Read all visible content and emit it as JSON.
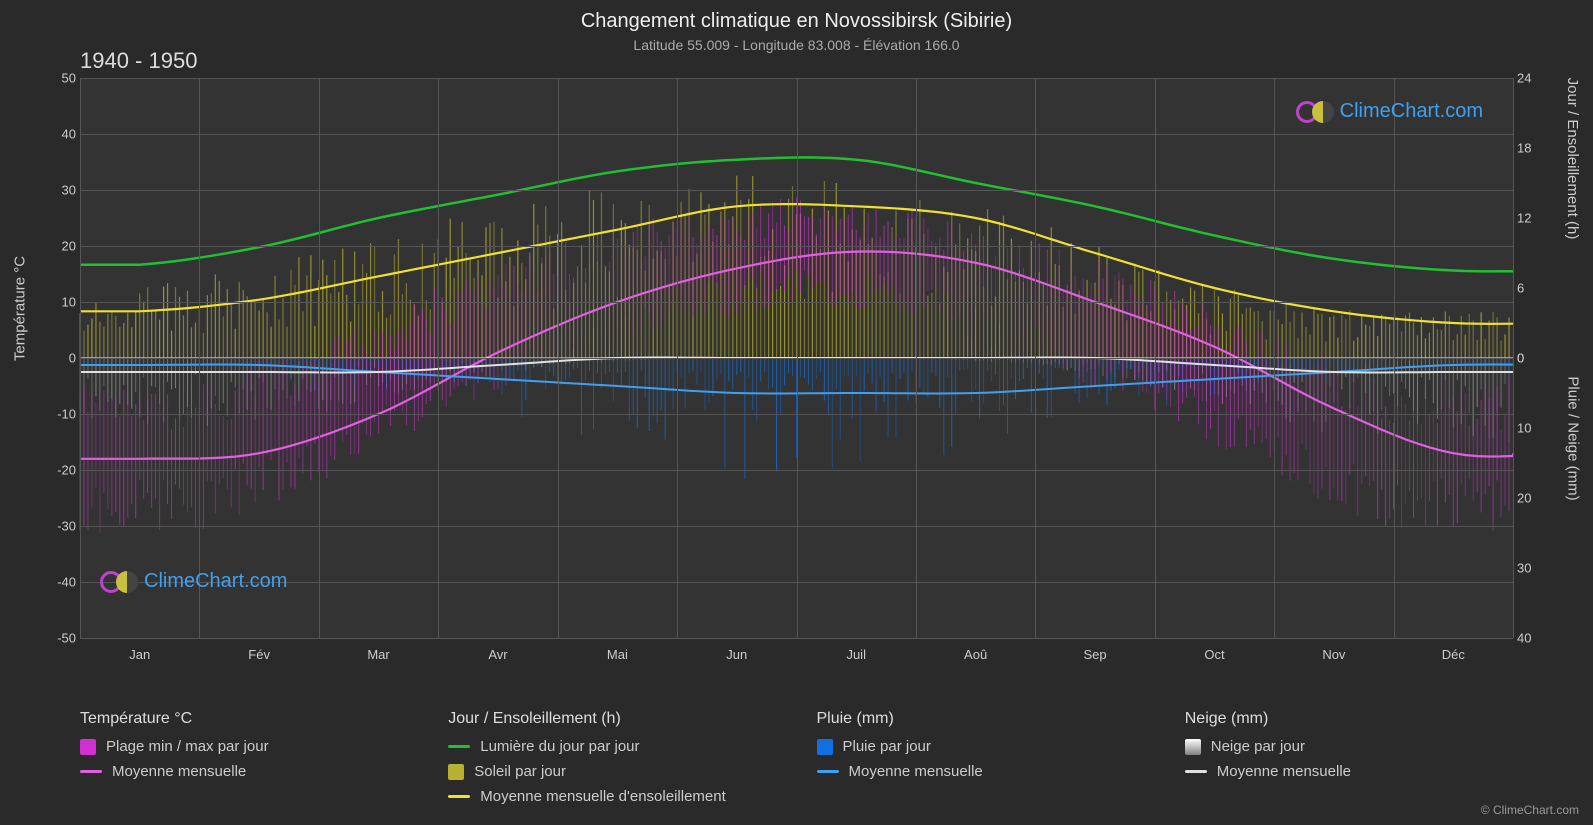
{
  "title": "Changement climatique en Novossibirsk (Sibirie)",
  "subtitle": "Latitude 55.009 - Longitude 83.008 - Élévation 166.0",
  "period": "1940 - 1950",
  "brand": "ClimeChart.com",
  "copyright": "© ClimeChart.com",
  "left_axis": {
    "label": "Température °C",
    "min": -50,
    "max": 50,
    "step": 10,
    "ticks": [
      50,
      40,
      30,
      20,
      10,
      0,
      -10,
      -20,
      -30,
      -40,
      -50
    ]
  },
  "right_axis_top": {
    "label": "Jour / Ensoleillement (h)",
    "ticks": [
      24,
      18,
      12,
      6,
      0
    ],
    "min": 0,
    "max": 24
  },
  "right_axis_bot": {
    "label": "Pluie / Neige (mm)",
    "ticks": [
      0,
      10,
      20,
      30,
      40
    ],
    "min": 0,
    "max": 40
  },
  "months": [
    "Jan",
    "Fév",
    "Mar",
    "Avr",
    "Mai",
    "Jun",
    "Juil",
    "Aoû",
    "Sep",
    "Oct",
    "Nov",
    "Déc"
  ],
  "colors": {
    "background": "#2a2a2a",
    "plot_bg": "#333333",
    "grid": "#555555",
    "text": "#cccccc",
    "temp_range": "#d030d0",
    "temp_mean": "#e060e0",
    "daylight": "#20c030",
    "sunshine_bar": "#b8b030",
    "sunshine_mean": "#f0e030",
    "rain_bar": "#1070e0",
    "rain_mean": "#40a0f0",
    "snow_bar": "#b0b0b0",
    "snow_mean": "#e0e0e0",
    "brand": "#40a0f0"
  },
  "series": {
    "temp_mean": [
      -18,
      -17,
      -10,
      1,
      10,
      16,
      19,
      17,
      10,
      2,
      -9,
      -17
    ],
    "daylight_h": [
      8,
      9.5,
      12,
      14,
      16,
      17,
      17,
      15,
      13,
      10.5,
      8.5,
      7.5
    ],
    "sunshine_mean_h": [
      4,
      5,
      7,
      9,
      11,
      13,
      13,
      12,
      9,
      6,
      4,
      3
    ],
    "rain_mean_mm": [
      1,
      1,
      2,
      3,
      4,
      5,
      5,
      5,
      4,
      3,
      2,
      1
    ],
    "snow_mean_mm": [
      2,
      2,
      2,
      1,
      0,
      0,
      0,
      0,
      0,
      1,
      2,
      2
    ],
    "temp_minmax_amp": [
      14,
      14,
      13,
      12,
      11,
      10,
      10,
      10,
      11,
      12,
      13,
      14
    ],
    "sunshine_daily_max_h": [
      5,
      7,
      9,
      12,
      14,
      16,
      16,
      15,
      12,
      8,
      5,
      4
    ],
    "rain_daily_max_mm": [
      3,
      3,
      5,
      8,
      12,
      18,
      20,
      18,
      12,
      8,
      5,
      3
    ],
    "snow_daily_max_mm": [
      10,
      10,
      8,
      4,
      1,
      0,
      0,
      0,
      1,
      4,
      10,
      12
    ]
  },
  "legend": {
    "temp": {
      "header": "Température °C",
      "range": "Plage min / max par jour",
      "mean": "Moyenne mensuelle"
    },
    "day": {
      "header": "Jour / Ensoleillement (h)",
      "daylight": "Lumière du jour par jour",
      "sunbar": "Soleil par jour",
      "sunmean": "Moyenne mensuelle d'ensoleillement"
    },
    "rain": {
      "header": "Pluie (mm)",
      "bar": "Pluie par jour",
      "mean": "Moyenne mensuelle"
    },
    "snow": {
      "header": "Neige (mm)",
      "bar": "Neige par jour",
      "mean": "Moyenne mensuelle"
    }
  }
}
